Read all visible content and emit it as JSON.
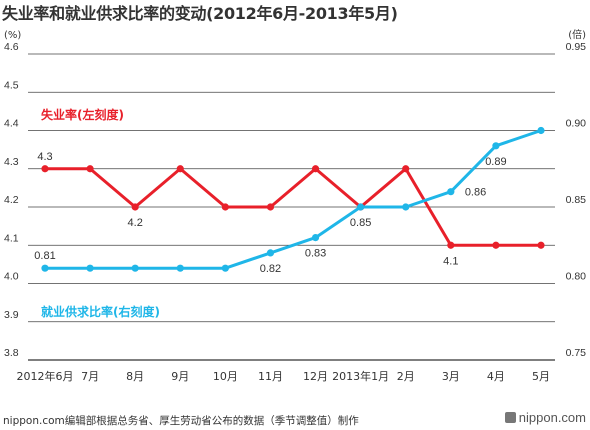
{
  "title": "失业率和就业供求比率的变动(2012年6月-2013年5月)",
  "source": "nippon.com编辑部根据总务省、厚生劳动省公布的数据（季节调整值）制作",
  "brand": "nippon.com",
  "chart_data": {
    "type": "line",
    "categories": [
      "2012年6月",
      "7月",
      "8月",
      "9月",
      "10月",
      "11月",
      "12月",
      "2013年1月",
      "2月",
      "3月",
      "4月",
      "5月"
    ],
    "left_axis": {
      "unit": "(%)",
      "min": 3.8,
      "max": 4.6,
      "step": 0.1,
      "ticks": [
        "3.8",
        "3.9",
        "4.0",
        "4.1",
        "4.2",
        "4.3",
        "4.4",
        "4.5",
        "4.6"
      ]
    },
    "right_axis": {
      "unit": "(倍)",
      "min": 0.75,
      "max": 0.95,
      "step": 0.05,
      "ticks": [
        "0.75",
        "0.80",
        "0.85",
        "0.90",
        "0.95"
      ]
    },
    "grid": true,
    "series": [
      {
        "name": "失业率(左刻度)",
        "axis": "left",
        "color": "#e8202a",
        "values": [
          4.3,
          4.3,
          4.2,
          4.3,
          4.2,
          4.2,
          4.3,
          4.2,
          4.3,
          4.1,
          4.1,
          4.1
        ],
        "data_labels": [
          {
            "index": 0,
            "text": "4.3",
            "pos": "above"
          },
          {
            "index": 2,
            "text": "4.2",
            "pos": "below"
          },
          {
            "index": 9,
            "text": "4.1",
            "pos": "below"
          }
        ]
      },
      {
        "name": "就业供求比率(右刻度)",
        "axis": "right",
        "color": "#1fb6e8",
        "values": [
          0.81,
          0.81,
          0.81,
          0.81,
          0.81,
          0.82,
          0.83,
          0.85,
          0.85,
          0.86,
          0.89,
          0.9
        ],
        "data_labels": [
          {
            "index": 0,
            "text": "0.81",
            "pos": "above"
          },
          {
            "index": 5,
            "text": "0.82",
            "pos": "below"
          },
          {
            "index": 6,
            "text": "0.83",
            "pos": "below"
          },
          {
            "index": 7,
            "text": "0.85",
            "pos": "below"
          },
          {
            "index": 9,
            "text": "0.86",
            "pos": "right"
          },
          {
            "index": 10,
            "text": "0.89",
            "pos": "below"
          }
        ]
      }
    ]
  }
}
